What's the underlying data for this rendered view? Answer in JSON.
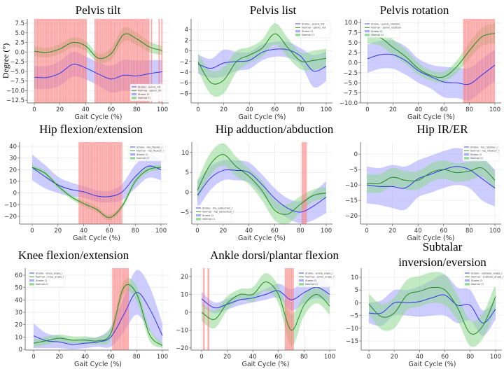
{
  "chart_data": [
    {
      "type": "line",
      "title": "Pelvis  tilt",
      "xlabel": "Gait Cycle (%)",
      "ylabel": "Degree (°)",
      "x": [
        0,
        10,
        20,
        30,
        40,
        50,
        60,
        70,
        80,
        90,
        100
      ],
      "xlim": [
        0,
        100
      ],
      "xticks": [
        0,
        20,
        40,
        60,
        80,
        100
      ],
      "ylim": [
        -13.2,
        8.6
      ],
      "yticks": [
        7.5,
        5.0,
        2.5,
        0.0,
        -2.5,
        -5.0,
        -7.5,
        -10.0,
        -12.5
      ],
      "ytick_labels": [
        "7.5",
        "5.0",
        "2.5",
        "0.0",
        "−2.5",
        "−5.0",
        "−7.5",
        "−10.0",
        "−12.5"
      ],
      "grid": true,
      "legend": {
        "position": "bottom-right",
        "labels": [
          "Stroke - pelvis_tilt",
          "Normal - pelvis_tilt",
          "Stroke CI",
          "Normal CI"
        ]
      },
      "series": [
        {
          "name": "Stroke",
          "mean": [
            -6.5,
            -6.6,
            -5.5,
            -3.2,
            -4.1,
            -5.7,
            -7.0,
            -6.0,
            -6.2,
            -5.6,
            -5.1
          ],
          "ci": [
            3,
            3,
            3.2,
            3.2,
            3,
            3,
            3.5,
            4,
            4,
            3.5,
            3
          ]
        },
        {
          "name": "Normal",
          "mean": [
            0.2,
            -0.1,
            0.8,
            2.5,
            1.6,
            -1.6,
            -0.4,
            4.6,
            3.4,
            1.3,
            0.4
          ],
          "ci": [
            1.3,
            1.3,
            1.3,
            1.3,
            1.3,
            1.2,
            1.5,
            1.8,
            1.6,
            1.4,
            1.2
          ]
        }
      ],
      "significant_spans": [
        [
          0,
          41
        ],
        [
          47,
          90
        ],
        [
          91,
          92
        ],
        [
          97,
          98
        ],
        [
          99,
          100
        ]
      ]
    },
    {
      "type": "line",
      "title": "Pelvis list",
      "xlabel": "Gait Cycle (%)",
      "x": [
        0,
        10,
        20,
        30,
        40,
        50,
        60,
        70,
        80,
        90,
        100
      ],
      "xlim": [
        0,
        100
      ],
      "xticks": [
        0,
        20,
        40,
        60,
        80,
        100
      ],
      "ylim": [
        -9.8,
        6
      ],
      "yticks": [
        4,
        2,
        0,
        -2,
        -4,
        -6,
        -8
      ],
      "ytick_labels": [
        "4",
        "2",
        "0",
        "−2",
        "−4",
        "−6",
        "−8"
      ],
      "grid": true,
      "legend": {
        "position": "top-right",
        "labels": [
          "Stroke - pelvis_list",
          "Normal - pelvis_list",
          "Stroke CI",
          "Normal CI"
        ]
      },
      "series": [
        {
          "name": "Stroke",
          "mean": [
            -2.5,
            -3.3,
            -2.3,
            -2.0,
            -1.8,
            -0.3,
            0.3,
            0.2,
            -1.0,
            -3.8,
            -2.9
          ],
          "ci": [
            1.8,
            1.8,
            2.5,
            1.8,
            1.6,
            1.5,
            1.4,
            1.5,
            1.5,
            3,
            2.8
          ]
        },
        {
          "name": "Normal",
          "mean": [
            -2.1,
            -6.0,
            -5.5,
            -2.0,
            -0.8,
            0.5,
            3.2,
            0.6,
            -1.9,
            -1.8,
            -1.4
          ],
          "ci": [
            1.6,
            2.2,
            2.5,
            2,
            1.5,
            1.6,
            2,
            1.8,
            1.6,
            1.8,
            1.8
          ]
        }
      ],
      "significant_spans": []
    },
    {
      "type": "line",
      "title": "Pelvis rotation",
      "xlabel": "Gait Cycle (%)",
      "x": [
        0,
        10,
        20,
        30,
        40,
        50,
        60,
        70,
        80,
        90,
        100
      ],
      "xlim": [
        0,
        100
      ],
      "xticks": [
        0,
        20,
        40,
        60,
        80,
        100
      ],
      "ylim": [
        -10,
        10.9
      ],
      "yticks": [
        10,
        7.5,
        5,
        2.5,
        0,
        -2.5,
        -5,
        -7.5,
        -10
      ],
      "ytick_labels": [
        "10.0",
        "7.5",
        "5.0",
        "2.5",
        "0.0",
        "−2.5",
        "−5.0",
        "−7.5",
        "−10.0"
      ],
      "grid": true,
      "legend": {
        "position": "top-left",
        "labels": [
          "Stroke - pelvis_rotation",
          "Normal - pelvis_rotation",
          "Stroke CI",
          "Normal CI"
        ]
      },
      "series": [
        {
          "name": "Stroke",
          "mean": [
            1.0,
            2.0,
            2.0,
            0.5,
            -2.0,
            -3.5,
            -4.8,
            -5.0,
            -5.3,
            -3.0,
            -0.6
          ],
          "ci": [
            3.5,
            3.5,
            3.5,
            3.5,
            3,
            3,
            3.8,
            3.8,
            4,
            4,
            4
          ]
        },
        {
          "name": "Normal",
          "mean": [
            6.3,
            6.2,
            3.8,
            1.5,
            -1.5,
            -3.2,
            -3.5,
            -1.0,
            3.0,
            6.5,
            7.3
          ],
          "ci": [
            1.5,
            2,
            2,
            1.8,
            1.5,
            1.3,
            1.3,
            1.5,
            2,
            2.3,
            2.5
          ]
        }
      ],
      "significant_spans": [
        [
          75,
          100
        ]
      ]
    },
    {
      "type": "line",
      "title": "Hip flexion/extension",
      "xlabel": "Gait Cycle (%)",
      "x": [
        0,
        10,
        20,
        30,
        40,
        50,
        60,
        70,
        80,
        90,
        100
      ],
      "xlim": [
        0,
        100
      ],
      "xticks": [
        0,
        20,
        40,
        60,
        80,
        100
      ],
      "ylim": [
        -26.6,
        43.6
      ],
      "yticks": [
        40,
        30,
        20,
        10,
        0,
        -10,
        -20
      ],
      "ytick_labels": [
        "40",
        "30",
        "20",
        "10",
        "0",
        "−10",
        "−20"
      ],
      "grid": true,
      "legend": {
        "position": "top-right",
        "labels": [
          "Stroke - hip_flexion_r",
          "Normal - hip_flexion_r",
          "Stroke CI",
          "Normal CI"
        ]
      },
      "series": [
        {
          "name": "Stroke",
          "mean": [
            22,
            14,
            7,
            3,
            1,
            -2.5,
            -3,
            1,
            14,
            23,
            20
          ],
          "ci": [
            11,
            10,
            7,
            6,
            5,
            5,
            5,
            7,
            10,
            10,
            9
          ]
        },
        {
          "name": "Normal",
          "mean": [
            22,
            17,
            6,
            -3,
            -9,
            -14,
            -21,
            -11,
            10,
            20,
            22
          ],
          "ci": [
            2,
            2,
            2,
            2,
            2.5,
            2.5,
            2.5,
            2.5,
            2.5,
            2.5,
            2
          ]
        }
      ],
      "significant_spans": [
        [
          36,
          70
        ]
      ]
    },
    {
      "type": "line",
      "title": "Hip adduction/abduction",
      "xlabel": "Gait Cycle (%)",
      "x": [
        0,
        10,
        20,
        30,
        40,
        50,
        60,
        70,
        80,
        90,
        100
      ],
      "xlim": [
        0,
        100
      ],
      "xticks": [
        0,
        20,
        40,
        60,
        80,
        100
      ],
      "ylim": [
        -8,
        12.6
      ],
      "yticks": [
        10,
        5,
        0,
        -5
      ],
      "ytick_labels": [
        "10",
        "5",
        "0",
        "−5"
      ],
      "grid": true,
      "legend": {
        "position": "bottom-left",
        "labels": [
          "Stroke - hip_adduction_r",
          "Normal - hip_adduction_r",
          "Stroke CI",
          "Normal CI"
        ]
      },
      "series": [
        {
          "name": "Stroke",
          "mean": [
            -0.8,
            3.5,
            5.5,
            5.5,
            5,
            2,
            -1.5,
            -4,
            -5,
            -3.5,
            -1.2
          ],
          "ci": [
            3.5,
            3,
            2.5,
            2.5,
            2.5,
            2.5,
            2.5,
            2.5,
            2.8,
            3.5,
            4
          ]
        },
        {
          "name": "Normal",
          "mean": [
            0.5,
            7,
            9.5,
            6.5,
            4,
            0.5,
            -4.5,
            -5.5,
            -3,
            -0.8,
            -0.2
          ],
          "ci": [
            2.5,
            2.8,
            2.8,
            2.5,
            2,
            2.5,
            2.5,
            2.5,
            2,
            1.5,
            1.5
          ]
        }
      ],
      "significant_spans": [
        [
          81,
          85
        ]
      ]
    },
    {
      "type": "line",
      "title": "Hip IR/ER",
      "xlabel": "Gait Cycle (%)",
      "x": [
        0,
        10,
        20,
        30,
        40,
        50,
        60,
        70,
        80,
        90,
        100
      ],
      "xlim": [
        0,
        100
      ],
      "xticks": [
        0,
        20,
        40,
        60,
        80,
        100
      ],
      "ylim": [
        -22.7,
        3.9
      ],
      "yticks": [
        0,
        -5,
        -10,
        -15,
        -20
      ],
      "ytick_labels": [
        "0",
        "−5",
        "−10",
        "−15",
        "−20"
      ],
      "grid": true,
      "legend": {
        "position": "top-right",
        "labels": [
          "Stroke - hip_rotation_r",
          "Normal - hip_rotation_r",
          "Stroke CI",
          "Normal CI"
        ]
      },
      "series": [
        {
          "name": "Stroke",
          "mean": [
            -10,
            -10.5,
            -10.5,
            -11,
            -8,
            -6.5,
            -5,
            -4,
            -5,
            -8,
            -11
          ],
          "ci": [
            6,
            6,
            7,
            7,
            6,
            6,
            6,
            6,
            6,
            7,
            6
          ]
        },
        {
          "name": "Normal",
          "mean": [
            -9.5,
            -9.5,
            -7.5,
            -8.5,
            -8.5,
            -6,
            -5,
            -6,
            -5.5,
            -4.5,
            -8.5
          ],
          "ci": [
            3,
            3,
            3,
            3,
            3,
            3,
            3,
            3,
            3,
            3,
            3
          ]
        }
      ],
      "significant_spans": []
    },
    {
      "type": "line",
      "title": "Knee flexion/extension",
      "xlabel": "Gait Cycle (%)",
      "x": [
        0,
        10,
        20,
        30,
        40,
        50,
        60,
        70,
        80,
        90,
        100
      ],
      "xlim": [
        0,
        100
      ],
      "xticks": [
        0,
        20,
        40,
        60,
        80,
        100
      ],
      "ylim": [
        -0.6,
        65.7
      ],
      "yticks": [
        60,
        50,
        40,
        30,
        20,
        10,
        0
      ],
      "ytick_labels": [
        "60",
        "50",
        "40",
        "30",
        "20",
        "10",
        "0"
      ],
      "grid": true,
      "legend": {
        "position": "top-left",
        "labels": [
          "Stroke - knee_angle_r",
          "Normal - knee_angle_r",
          "Stroke CI",
          "Normal CI"
        ]
      },
      "series": [
        {
          "name": "Stroke",
          "mean": [
            11,
            7,
            6,
            4,
            5,
            6,
            10,
            28,
            46,
            33,
            11
          ],
          "ci": [
            10,
            6,
            5,
            4,
            4,
            4,
            8,
            14,
            18,
            18,
            10
          ]
        },
        {
          "name": "Normal",
          "mean": [
            5,
            7,
            9,
            7.5,
            7.5,
            7,
            13,
            50,
            45,
            12,
            3
          ],
          "ci": [
            3,
            3,
            3,
            3,
            3,
            3,
            5,
            5,
            6,
            5,
            2
          ]
        }
      ],
      "significant_spans": [
        [
          61,
          74
        ]
      ]
    },
    {
      "type": "line",
      "title": "Ankle dorsi/plantar flexion",
      "xlabel": "Gait Cycle (%)",
      "x": [
        0,
        10,
        20,
        30,
        40,
        50,
        60,
        70,
        80,
        90,
        100
      ],
      "xlim": [
        0,
        100
      ],
      "xticks": [
        0,
        20,
        40,
        60,
        80,
        100
      ],
      "ylim": [
        -21.2,
        24.7
      ],
      "yticks": [
        20,
        10,
        0,
        -10,
        -20
      ],
      "ytick_labels": [
        "20",
        "10",
        "0",
        "−10",
        "−20"
      ],
      "grid": true,
      "legend": {
        "position": "top-right",
        "labels": [
          "Stroke - ankle_angle_r",
          "Normal - ankle_angle_r",
          "Stroke CI",
          "Normal CI"
        ]
      },
      "series": [
        {
          "name": "Stroke",
          "mean": [
            7.5,
            2.5,
            4.5,
            7,
            8,
            10,
            12,
            7,
            11,
            14,
            10
          ],
          "ci": [
            4,
            3,
            3,
            3,
            2.5,
            3,
            4,
            6,
            6,
            6,
            5
          ]
        },
        {
          "name": "Normal",
          "mean": [
            0,
            -4,
            5,
            10,
            10,
            17,
            10,
            -10,
            4,
            10,
            3.5
          ],
          "ci": [
            5,
            5,
            4,
            3,
            4,
            5,
            5,
            9,
            6,
            5,
            5
          ]
        }
      ],
      "significant_spans": [
        [
          1,
          2.5
        ],
        [
          4.5,
          6
        ],
        [
          65,
          72
        ]
      ]
    },
    {
      "type": "line",
      "title": "Subtalar inversion/eversion",
      "xlabel": "Gait Cycle (%)",
      "x": [
        0,
        10,
        20,
        30,
        40,
        50,
        60,
        70,
        80,
        90,
        100
      ],
      "xlim": [
        0,
        100
      ],
      "xticks": [
        0,
        20,
        40,
        60,
        80,
        100
      ],
      "ylim": [
        -18.6,
        13.6
      ],
      "yticks": [
        10,
        5,
        0,
        -5,
        -10,
        -15
      ],
      "ytick_labels": [
        "10",
        "5",
        "0",
        "−5",
        "−10",
        "−15"
      ],
      "grid": true,
      "legend": {
        "position": "top-right",
        "labels": [
          "Stroke - subtalar_angle_r",
          "Normal - subtalar_angle_r",
          "Stroke CI",
          "Normal CI"
        ]
      },
      "series": [
        {
          "name": "Stroke",
          "mean": [
            -4,
            -4,
            0,
            0,
            0.5,
            2,
            3,
            -1,
            -1,
            -8,
            -2.5
          ],
          "ci": [
            4,
            5,
            5,
            5,
            6,
            7,
            8,
            7,
            6,
            5,
            4
          ]
        },
        {
          "name": "Normal",
          "mean": [
            -0.5,
            -5.5,
            -4,
            3,
            4.5,
            6,
            5,
            -2,
            -12,
            -9,
            2.5
          ],
          "ci": [
            4,
            5,
            6,
            6,
            6,
            6,
            6,
            5,
            5,
            5,
            5
          ]
        }
      ],
      "significant_spans": []
    }
  ],
  "colors": {
    "stroke": "#3333ee",
    "stroke_ci": "#aaaaff",
    "normal": "#1f8a1f",
    "normal_ci": "#8fd88f",
    "significant": "#ff5c5c",
    "grid": "#e6e6e6"
  }
}
